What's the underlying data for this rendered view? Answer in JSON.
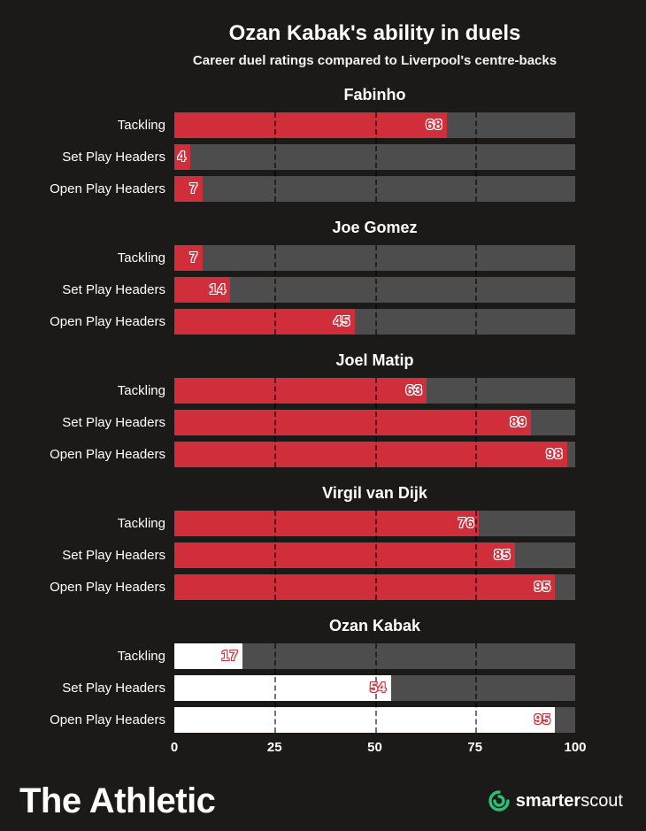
{
  "header": {
    "title": "Ozan Kabak's ability in duels",
    "subtitle": "Career duel ratings compared to Liverpool's centre-backs"
  },
  "chart_data": {
    "type": "bar",
    "orientation": "horizontal",
    "title": "Ozan Kabak's ability in duels",
    "subtitle": "Career duel ratings compared to Liverpool's centre-backs",
    "categories": [
      "Tackling",
      "Set Play Headers",
      "Open Play Headers"
    ],
    "xlim": [
      0,
      100
    ],
    "x_ticks": [
      0,
      25,
      50,
      75,
      100
    ],
    "gridlines": [
      25,
      50,
      75
    ],
    "legend": "none",
    "colors": {
      "bar": "#cf2e3a",
      "highlight_bar": "#ffffff",
      "track": "#4d4d4d",
      "background": "#1b1a18",
      "accent_green": "#25c277"
    },
    "series": [
      {
        "name": "Fabinho",
        "highlight": false,
        "values": [
          68,
          4,
          7
        ]
      },
      {
        "name": "Joe Gomez",
        "highlight": false,
        "values": [
          7,
          14,
          45
        ]
      },
      {
        "name": "Joel Matip",
        "highlight": false,
        "values": [
          63,
          89,
          98
        ]
      },
      {
        "name": "Virgil van Dijk",
        "highlight": false,
        "values": [
          76,
          85,
          95
        ]
      },
      {
        "name": "Ozan Kabak",
        "highlight": true,
        "values": [
          17,
          54,
          95
        ]
      }
    ]
  },
  "footer": {
    "brand": "The Athletic",
    "attribution_bold": "smarter",
    "attribution_light": "scout"
  }
}
